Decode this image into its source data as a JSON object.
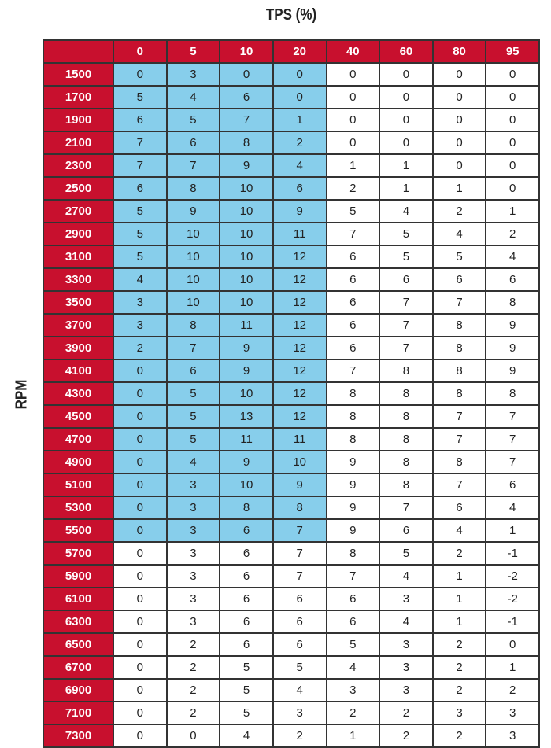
{
  "chart_data": {
    "type": "table",
    "xlabel": "TPS (%)",
    "ylabel": "RPM",
    "columns": [
      0,
      5,
      10,
      20,
      40,
      60,
      80,
      95
    ],
    "rows": [
      1500,
      1700,
      1900,
      2100,
      2300,
      2500,
      2700,
      2900,
      3100,
      3300,
      3500,
      3700,
      3900,
      4100,
      4300,
      4500,
      4700,
      4900,
      5100,
      5300,
      5500,
      5700,
      5900,
      6100,
      6300,
      6500,
      6700,
      6900,
      7100,
      7300
    ],
    "values": [
      [
        0,
        3,
        0,
        0,
        0,
        0,
        0,
        0
      ],
      [
        5,
        4,
        6,
        0,
        0,
        0,
        0,
        0
      ],
      [
        6,
        5,
        7,
        1,
        0,
        0,
        0,
        0
      ],
      [
        7,
        6,
        8,
        2,
        0,
        0,
        0,
        0
      ],
      [
        7,
        7,
        9,
        4,
        1,
        1,
        0,
        0
      ],
      [
        6,
        8,
        10,
        6,
        2,
        1,
        1,
        0
      ],
      [
        5,
        9,
        10,
        9,
        5,
        4,
        2,
        1
      ],
      [
        5,
        10,
        10,
        11,
        7,
        5,
        4,
        2
      ],
      [
        5,
        10,
        10,
        12,
        6,
        5,
        5,
        4
      ],
      [
        4,
        10,
        10,
        12,
        6,
        6,
        6,
        6
      ],
      [
        3,
        10,
        10,
        12,
        6,
        7,
        7,
        8
      ],
      [
        3,
        8,
        11,
        12,
        6,
        7,
        8,
        9
      ],
      [
        2,
        7,
        9,
        12,
        6,
        7,
        8,
        9
      ],
      [
        0,
        6,
        9,
        12,
        7,
        8,
        8,
        9
      ],
      [
        0,
        5,
        10,
        12,
        8,
        8,
        8,
        8
      ],
      [
        0,
        5,
        13,
        12,
        8,
        8,
        7,
        7
      ],
      [
        0,
        5,
        11,
        11,
        8,
        8,
        7,
        7
      ],
      [
        0,
        4,
        9,
        10,
        9,
        8,
        8,
        7
      ],
      [
        0,
        3,
        10,
        9,
        9,
        8,
        7,
        6
      ],
      [
        0,
        3,
        8,
        8,
        9,
        7,
        6,
        4
      ],
      [
        0,
        3,
        6,
        7,
        9,
        6,
        4,
        1
      ],
      [
        0,
        3,
        6,
        7,
        8,
        5,
        2,
        -1
      ],
      [
        0,
        3,
        6,
        7,
        7,
        4,
        1,
        -2
      ],
      [
        0,
        3,
        6,
        6,
        6,
        3,
        1,
        -2
      ],
      [
        0,
        3,
        6,
        6,
        6,
        4,
        1,
        -1
      ],
      [
        0,
        2,
        6,
        6,
        5,
        3,
        2,
        0
      ],
      [
        0,
        2,
        5,
        5,
        4,
        3,
        2,
        1
      ],
      [
        0,
        2,
        5,
        4,
        3,
        3,
        2,
        2
      ],
      [
        0,
        2,
        5,
        3,
        2,
        2,
        3,
        3
      ],
      [
        0,
        0,
        4,
        2,
        1,
        2,
        2,
        3
      ]
    ],
    "highlight": {
      "tps_max": 20,
      "rpm_max": 5500,
      "color": "#87ceeb"
    },
    "header_color": "#c8102e"
  }
}
